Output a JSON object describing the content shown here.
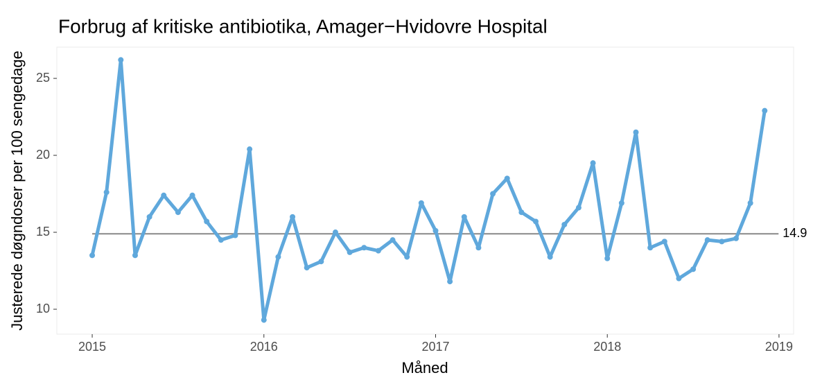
{
  "chart_data": {
    "type": "line",
    "title": "Forbrug af kritiske antibiotika, Amager−Hvidovre Hospital",
    "xlabel": "Måned",
    "ylabel": "Justerede døgndoser per 100 sengedage",
    "x": [
      "2015-01",
      "2015-02",
      "2015-03",
      "2015-04",
      "2015-05",
      "2015-06",
      "2015-07",
      "2015-08",
      "2015-09",
      "2015-10",
      "2015-11",
      "2015-12",
      "2016-01",
      "2016-02",
      "2016-03",
      "2016-04",
      "2016-05",
      "2016-06",
      "2016-07",
      "2016-08",
      "2016-09",
      "2016-10",
      "2016-11",
      "2016-12",
      "2017-01",
      "2017-02",
      "2017-03",
      "2017-04",
      "2017-05",
      "2017-06",
      "2017-07",
      "2017-08",
      "2017-09",
      "2017-10",
      "2017-11",
      "2017-12",
      "2018-01",
      "2018-02",
      "2018-03",
      "2018-04",
      "2018-05",
      "2018-06",
      "2018-07",
      "2018-08",
      "2018-09",
      "2018-10",
      "2018-11",
      "2018-12"
    ],
    "series": [
      {
        "color": "#5fa8dc",
        "values": [
          13.5,
          17.6,
          26.2,
          13.5,
          16.0,
          17.4,
          16.3,
          17.4,
          15.7,
          14.5,
          14.8,
          20.4,
          9.3,
          13.4,
          16.0,
          12.7,
          13.1,
          15.0,
          13.7,
          14.0,
          13.8,
          14.5,
          13.4,
          16.9,
          15.1,
          11.8,
          16.0,
          14.0,
          17.5,
          18.5,
          16.3,
          15.7,
          13.4,
          15.5,
          16.6,
          19.5,
          13.3,
          16.9,
          21.5,
          14.0,
          14.4,
          12.0,
          12.6,
          14.5,
          14.4,
          14.6,
          16.9,
          22.9
        ]
      }
    ],
    "centerline": {
      "value": 14.9,
      "color": "#888888"
    },
    "xlim": [
      2014.794,
      2019.085
    ],
    "xticks": [
      2015,
      2016,
      2017,
      2018,
      2019
    ],
    "ylim": [
      8.38,
      27.03
    ],
    "yticks": [
      10,
      15,
      20,
      25
    ]
  }
}
